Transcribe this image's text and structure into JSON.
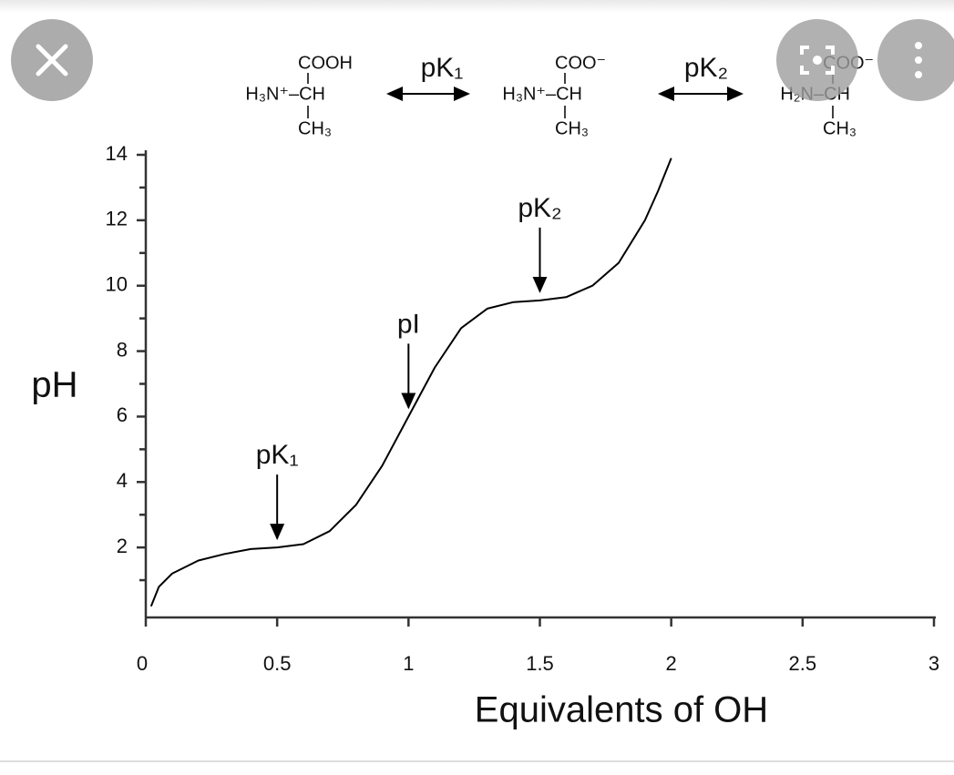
{
  "chart_data": {
    "type": "line",
    "xlabel": "Equivalents of OH",
    "ylabel": "pH",
    "color": "#000000",
    "x": [
      0.02,
      0.05,
      0.1,
      0.2,
      0.3,
      0.4,
      0.5,
      0.6,
      0.7,
      0.8,
      0.9,
      1.0,
      1.1,
      1.2,
      1.3,
      1.4,
      1.5,
      1.6,
      1.7,
      1.8,
      1.9,
      1.95,
      2.0
    ],
    "values": [
      0.2,
      0.8,
      1.2,
      1.6,
      1.8,
      1.95,
      2.0,
      2.1,
      2.5,
      3.3,
      4.5,
      6.0,
      7.5,
      8.7,
      9.3,
      9.5,
      9.55,
      9.65,
      10.0,
      10.7,
      12.0,
      12.9,
      13.9
    ],
    "xlim": [
      0,
      3
    ],
    "ylim": [
      0,
      14
    ],
    "xticks": [
      0,
      0.5,
      1,
      1.5,
      2,
      2.5,
      3
    ],
    "yticks": [
      2,
      4,
      6,
      8,
      10,
      12,
      14
    ],
    "y_minor_ticks": [
      1,
      3,
      5,
      7,
      9,
      11,
      13
    ],
    "annotations": [
      {
        "text": "pK₁",
        "x": 0.5
      },
      {
        "text": "pI",
        "x": 1.0
      },
      {
        "text": "pK₂",
        "x": 1.5
      }
    ],
    "scheme": {
      "species": [
        {
          "top": "COOH",
          "middle": "H₃N⁺–CH",
          "bottom": "CH₃"
        },
        {
          "top": "COO⁻",
          "middle": "H₃N⁺–CH",
          "bottom": "CH₃"
        },
        {
          "top": "COO⁻",
          "middle": "H₂N–CH",
          "bottom": "CH₃"
        }
      ],
      "steps": [
        "pK₁",
        "pK₂"
      ]
    }
  }
}
